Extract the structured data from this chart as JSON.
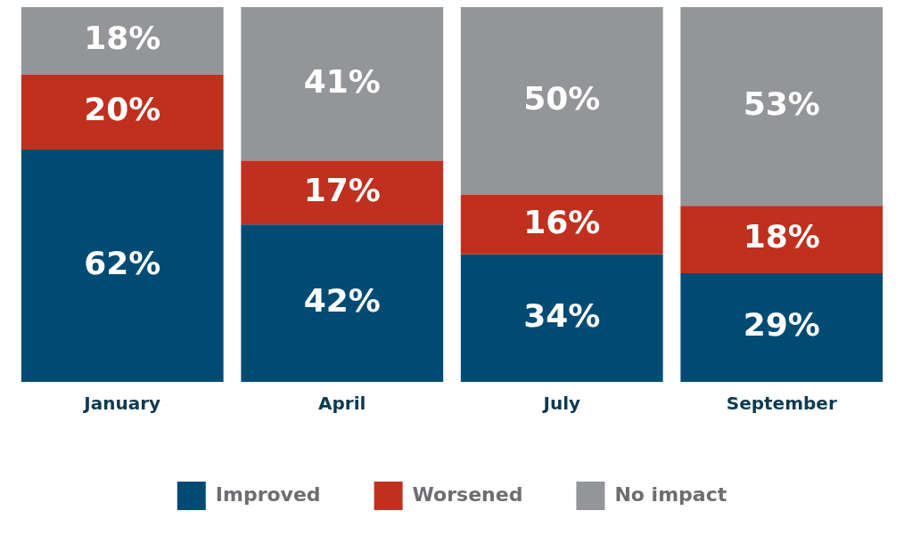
{
  "chart_data": {
    "type": "bar",
    "stacked": true,
    "categories": [
      "January",
      "April",
      "July",
      "September"
    ],
    "series": [
      {
        "name": "Improved",
        "color": "#004b74",
        "values": [
          62,
          42,
          34,
          29
        ],
        "value_labels": [
          "62%",
          "42%",
          "34%",
          "29%"
        ]
      },
      {
        "name": "Worsened",
        "color": "#c0301f",
        "values": [
          20,
          17,
          16,
          18
        ],
        "value_labels": [
          "20%",
          "17%",
          "16%",
          "18%"
        ]
      },
      {
        "name": "No impact",
        "color": "#939598",
        "values": [
          18,
          41,
          50,
          53
        ],
        "value_labels": [
          "18%",
          "41%",
          "50%",
          "53%"
        ]
      }
    ],
    "tick_labels": "x",
    "grid": false,
    "legend": "bottom"
  }
}
